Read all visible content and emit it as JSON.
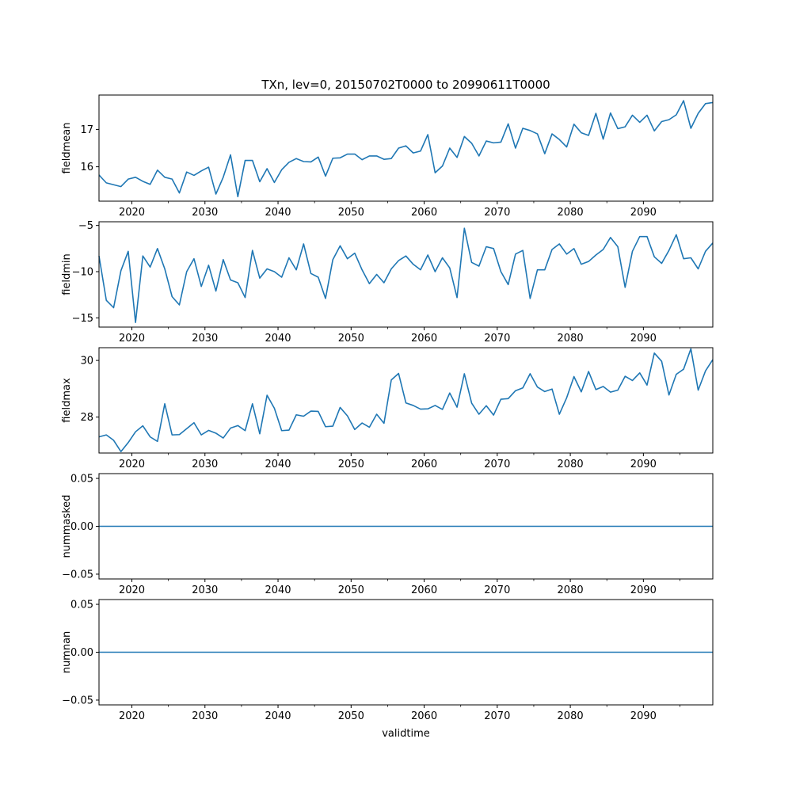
{
  "chart_data": {
    "type": "line",
    "title": "TXn, lev=0, 20150702T0000 to 20990611T0000",
    "xlabel": "validtime",
    "xlim": [
      2015.5,
      2099.5
    ],
    "x_start": 2015.5,
    "x_tick_values": [
      2020,
      2030,
      2040,
      2050,
      2060,
      2070,
      2080,
      2090
    ],
    "x_tick_labels": [
      "2020",
      "2030",
      "2040",
      "2050",
      "2060",
      "2070",
      "2080",
      "2090"
    ],
    "x_minor_ticks": [
      2025,
      2035,
      2045,
      2055,
      2065,
      2075,
      2085,
      2095
    ],
    "line_color": "#1f77b4",
    "panels": [
      {
        "ylabel": "fieldmean",
        "ylim": [
          15.08,
          17.92
        ],
        "y_ticks": [
          16,
          17
        ],
        "y_tick_labels": [
          "16",
          "17"
        ],
        "values": [
          15.78,
          15.57,
          15.52,
          15.47,
          15.67,
          15.72,
          15.61,
          15.53,
          15.91,
          15.72,
          15.67,
          15.3,
          15.86,
          15.77,
          15.89,
          15.99,
          15.27,
          15.72,
          16.32,
          15.2,
          16.17,
          16.17,
          15.6,
          15.95,
          15.58,
          15.92,
          16.12,
          16.22,
          16.14,
          16.13,
          16.26,
          15.75,
          16.23,
          16.24,
          16.34,
          16.34,
          16.19,
          16.29,
          16.29,
          16.2,
          16.22,
          16.5,
          16.56,
          16.37,
          16.42,
          16.86,
          15.84,
          16.02,
          16.5,
          16.25,
          16.81,
          16.63,
          16.29,
          16.69,
          16.64,
          16.66,
          17.15,
          16.5,
          17.03,
          16.97,
          16.88,
          16.35,
          16.88,
          16.73,
          16.53,
          17.14,
          16.91,
          16.84,
          17.43,
          16.74,
          17.44,
          17.02,
          17.07,
          17.38,
          17.19,
          17.38,
          16.96,
          17.21,
          17.26,
          17.39,
          17.77,
          17.03,
          17.43,
          17.69,
          17.72
        ]
      },
      {
        "ylabel": "fieldmin",
        "ylim": [
          -16.0,
          -4.6
        ],
        "y_ticks": [
          -15,
          -10,
          -5
        ],
        "y_tick_labels": [
          "−15",
          "−10",
          "−5"
        ],
        "values": [
          -8.3,
          -13.1,
          -13.9,
          -9.9,
          -7.8,
          -15.5,
          -8.3,
          -9.5,
          -7.5,
          -9.7,
          -12.7,
          -13.6,
          -10.0,
          -8.6,
          -11.6,
          -9.3,
          -12.1,
          -8.7,
          -10.9,
          -11.2,
          -12.8,
          -7.7,
          -10.7,
          -9.7,
          -10.0,
          -10.6,
          -8.5,
          -9.8,
          -7.0,
          -10.2,
          -10.6,
          -12.9,
          -8.7,
          -7.2,
          -8.6,
          -8.0,
          -9.8,
          -11.3,
          -10.3,
          -11.2,
          -9.7,
          -8.8,
          -8.3,
          -9.2,
          -9.8,
          -8.2,
          -10.0,
          -8.5,
          -9.6,
          -12.8,
          -5.3,
          -9.0,
          -9.4,
          -7.3,
          -7.5,
          -10.0,
          -11.4,
          -8.1,
          -7.7,
          -12.9,
          -9.8,
          -9.8,
          -7.6,
          -7.0,
          -8.1,
          -7.5,
          -9.2,
          -8.9,
          -8.2,
          -7.6,
          -6.3,
          -7.3,
          -11.7,
          -7.8,
          -6.2,
          -6.2,
          -8.4,
          -9.1,
          -7.7,
          -6.0,
          -8.6,
          -8.5,
          -9.7,
          -7.8,
          -6.9
        ]
      },
      {
        "ylabel": "fieldmax",
        "ylim": [
          26.73,
          30.45
        ],
        "y_ticks": [
          28,
          30
        ],
        "y_tick_labels": [
          "28",
          "30"
        ],
        "values": [
          27.3,
          27.37,
          27.18,
          26.78,
          27.1,
          27.48,
          27.69,
          27.3,
          27.14,
          28.47,
          27.37,
          27.38,
          27.59,
          27.8,
          27.37,
          27.53,
          27.43,
          27.26,
          27.61,
          27.7,
          27.52,
          28.47,
          27.41,
          28.77,
          28.31,
          27.52,
          27.54,
          28.08,
          28.03,
          28.21,
          28.2,
          27.66,
          27.68,
          28.34,
          28.04,
          27.56,
          27.79,
          27.64,
          28.1,
          27.78,
          29.31,
          29.54,
          28.5,
          28.41,
          28.28,
          28.29,
          28.41,
          28.27,
          28.85,
          28.35,
          29.53,
          28.49,
          28.1,
          28.4,
          28.07,
          28.63,
          28.65,
          28.93,
          29.03,
          29.53,
          29.06,
          28.9,
          28.99,
          28.1,
          28.68,
          29.43,
          28.89,
          29.61,
          28.97,
          29.08,
          28.88,
          28.95,
          29.44,
          29.29,
          29.56,
          29.13,
          30.26,
          29.97,
          28.78,
          29.51,
          29.69,
          30.41,
          28.95,
          29.63,
          30.03
        ]
      },
      {
        "ylabel": "nummasked",
        "ylim": [
          -0.055,
          0.055
        ],
        "y_ticks": [
          -0.05,
          0.0,
          0.05
        ],
        "y_tick_labels": [
          "−0.05",
          "0.00",
          "0.05"
        ],
        "values": [
          0,
          0
        ]
      },
      {
        "ylabel": "numnan",
        "ylim": [
          -0.055,
          0.055
        ],
        "y_ticks": [
          -0.05,
          0.0,
          0.05
        ],
        "y_tick_labels": [
          "−0.05",
          "0.00",
          "0.05"
        ],
        "values": [
          0,
          0
        ]
      }
    ]
  }
}
